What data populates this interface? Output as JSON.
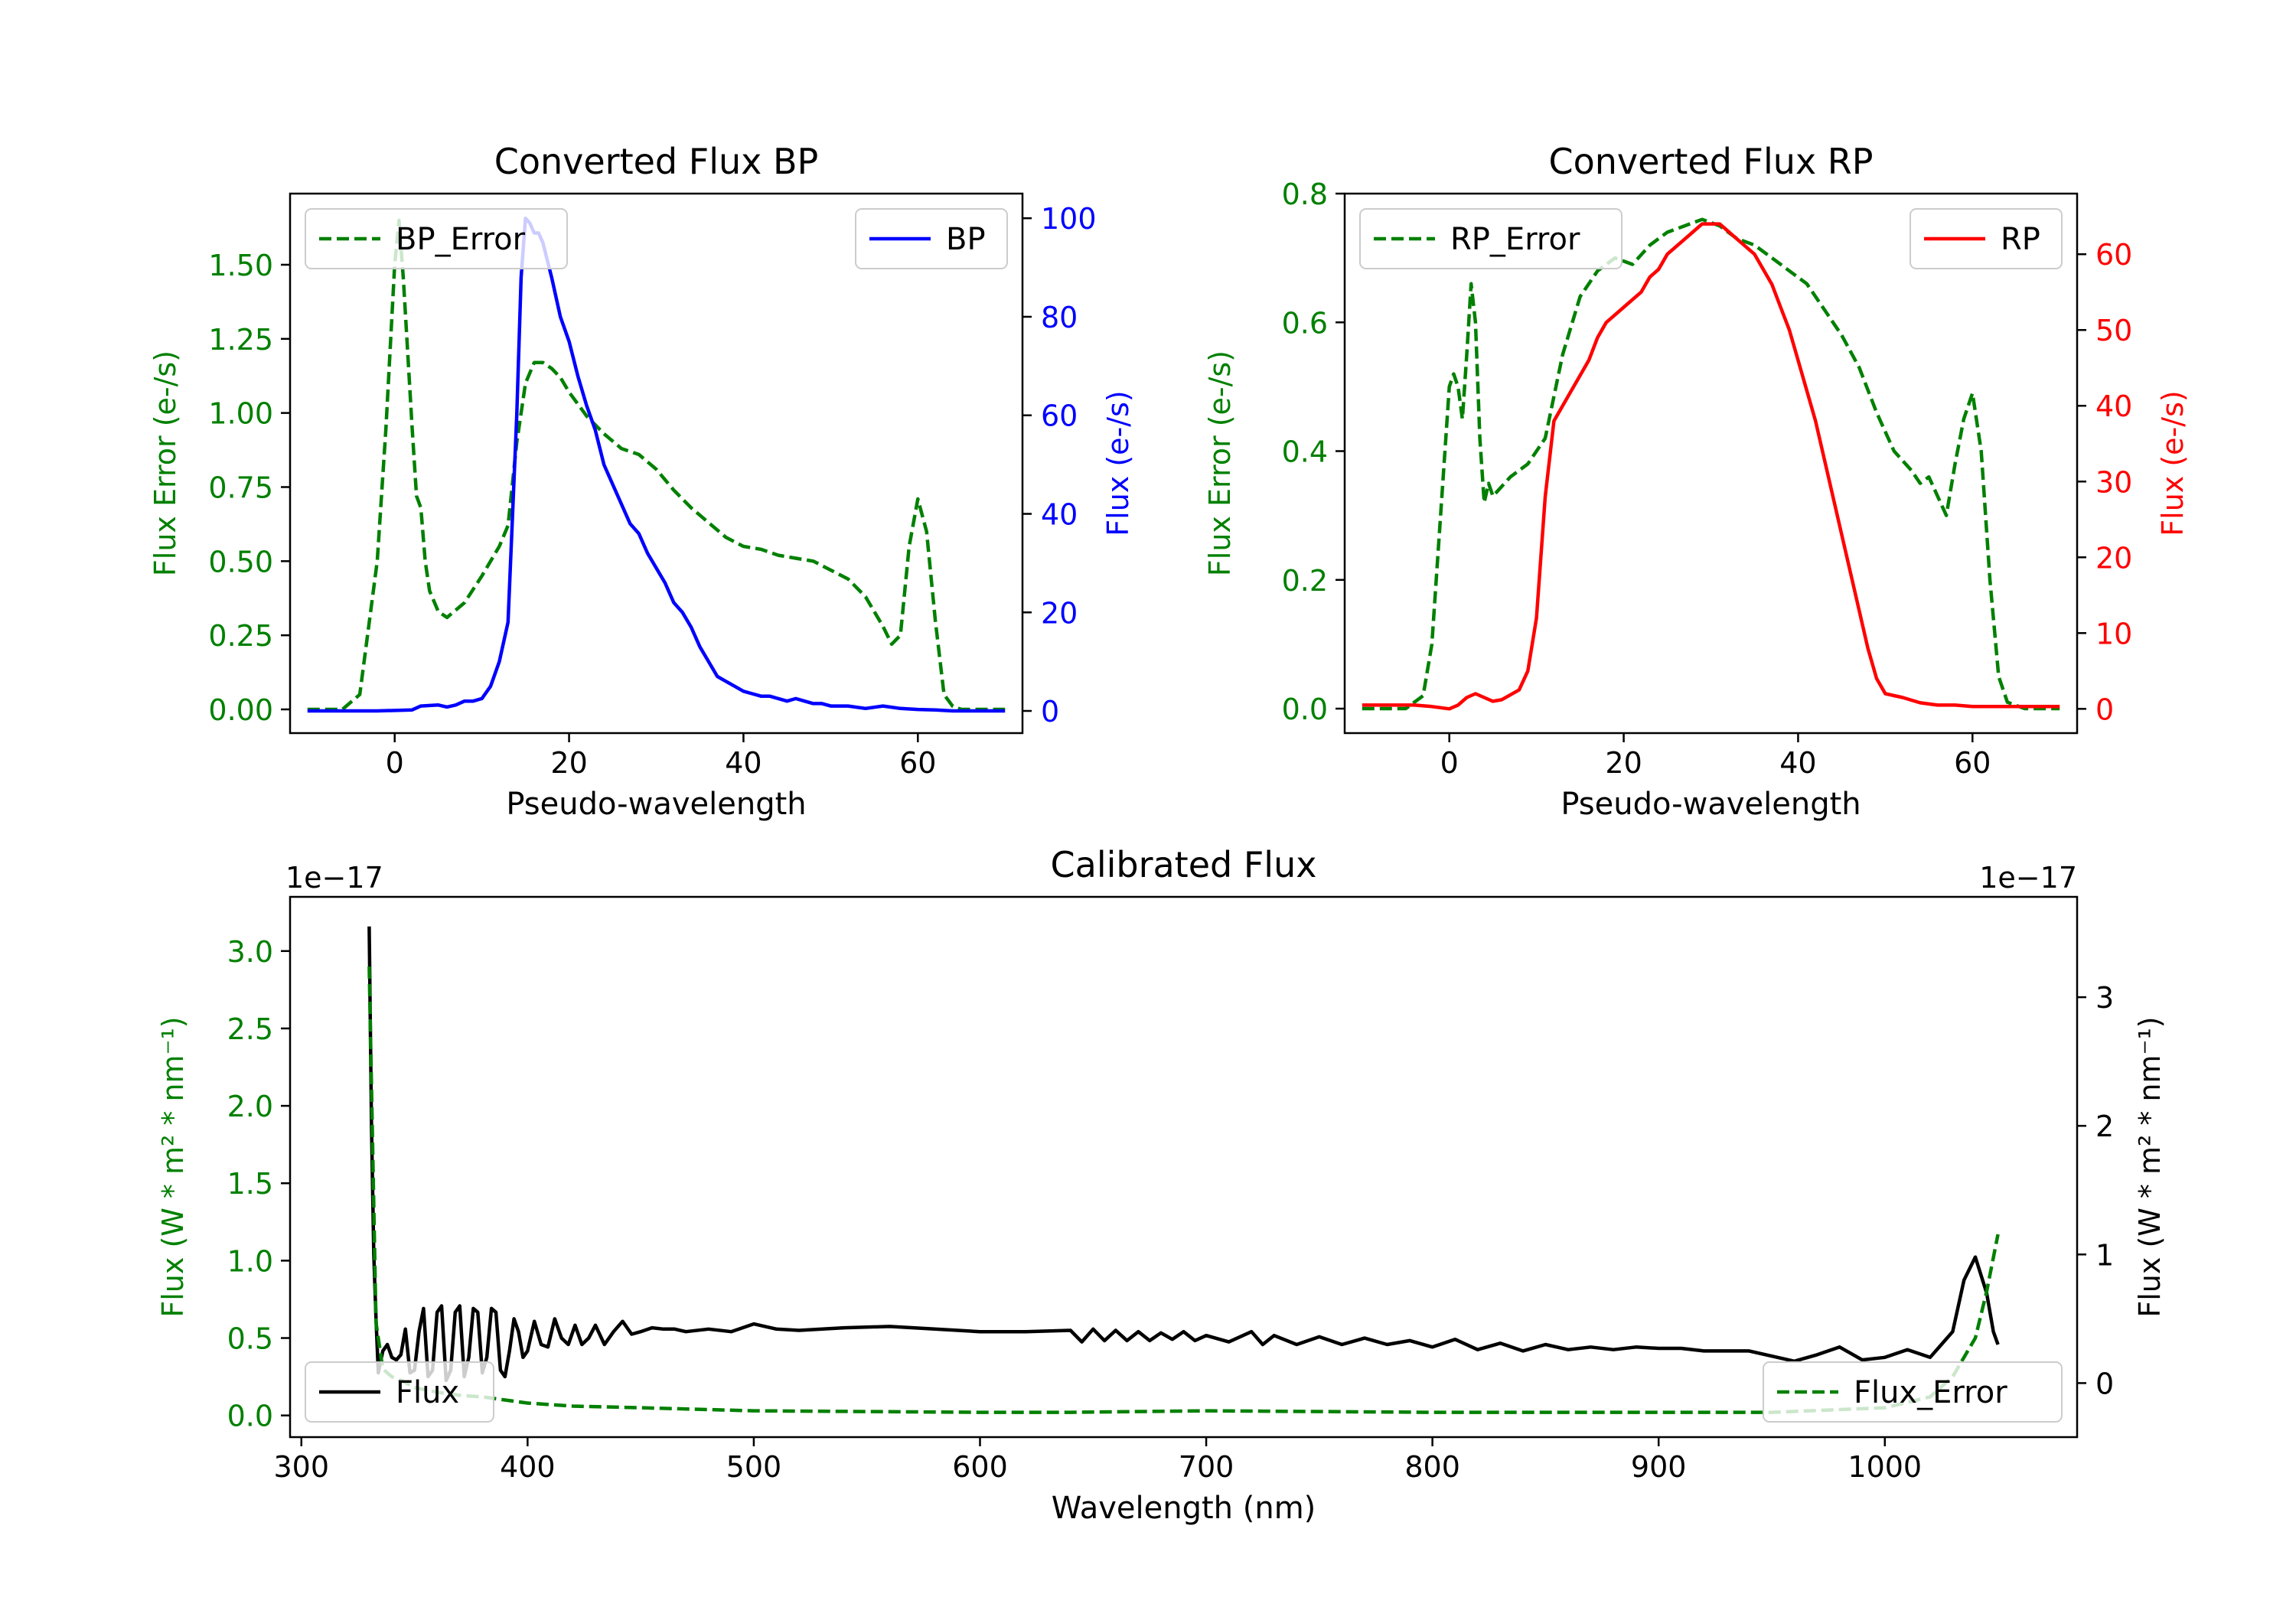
{
  "colors": {
    "green": "#008000",
    "blue": "#0000ff",
    "red": "#ff0000",
    "black": "#000000"
  },
  "chart_data": [
    {
      "id": "bp",
      "type": "line",
      "title": "Converted Flux BP",
      "xlabel": "Pseudo-wavelength",
      "ylabel_left": "Flux Error (e-/s)",
      "ylabel_right": "Flux (e-/s)",
      "xlim": [
        -12,
        72
      ],
      "ylim_left": [
        -0.08,
        1.74
      ],
      "ylim_right": [
        -4.5,
        105
      ],
      "xticks": [
        0,
        20,
        40,
        60
      ],
      "xtick_labels": [
        "0",
        "20",
        "40",
        "60"
      ],
      "yticks_left": [
        0,
        0.25,
        0.5,
        0.75,
        1.0,
        1.25,
        1.5
      ],
      "ytick_labels_left": [
        "0.00",
        "0.25",
        "0.50",
        "0.75",
        "1.00",
        "1.25",
        "1.50"
      ],
      "yticks_right": [
        0,
        20,
        40,
        60,
        80,
        100
      ],
      "ytick_labels_right": [
        "0",
        "20",
        "40",
        "60",
        "80",
        "100"
      ],
      "series": [
        {
          "name": "BP_Error",
          "axis": "left",
          "color": "#008000",
          "dash": "dashed",
          "legend_label": "BP_Error",
          "x": [
            -10,
            -6,
            -4,
            -2,
            -1,
            0,
            0.5,
            1,
            2,
            2.5,
            3,
            3.5,
            4,
            5,
            6,
            8,
            10,
            12,
            13,
            14,
            15,
            16,
            17,
            18,
            19,
            20,
            22,
            24,
            26,
            28,
            30,
            32,
            34,
            36,
            38,
            40,
            42,
            44,
            46,
            48,
            50,
            52,
            54,
            56,
            57,
            58,
            59,
            60,
            61,
            62,
            63,
            64,
            65,
            66,
            68,
            70
          ],
          "y": [
            0,
            0,
            0.05,
            0.5,
            0.95,
            1.5,
            1.65,
            1.45,
            0.95,
            0.72,
            0.68,
            0.5,
            0.4,
            0.33,
            0.31,
            0.36,
            0.45,
            0.55,
            0.62,
            0.9,
            1.1,
            1.17,
            1.17,
            1.15,
            1.12,
            1.07,
            0.99,
            0.93,
            0.88,
            0.86,
            0.81,
            0.74,
            0.68,
            0.63,
            0.58,
            0.55,
            0.54,
            0.52,
            0.51,
            0.5,
            0.47,
            0.44,
            0.38,
            0.28,
            0.22,
            0.25,
            0.55,
            0.71,
            0.6,
            0.3,
            0.05,
            0.01,
            0,
            0,
            0,
            0
          ]
        },
        {
          "name": "BP",
          "axis": "right",
          "color": "#0000ff",
          "dash": "solid",
          "legend_label": "BP",
          "x": [
            -10,
            -2,
            2,
            3,
            5,
            6,
            7,
            8,
            9,
            10,
            11,
            12,
            13,
            14,
            14.5,
            15,
            15.5,
            16,
            16.5,
            17,
            18,
            19,
            20,
            21,
            22,
            23,
            24,
            25,
            26,
            27,
            28,
            29,
            30,
            31,
            32,
            33,
            34,
            35,
            36,
            37,
            38,
            39,
            40,
            41,
            42,
            43,
            44,
            45,
            46,
            47,
            48,
            49,
            50,
            52,
            54,
            56,
            58,
            60,
            62,
            64,
            66,
            68,
            70
          ],
          "y": [
            0,
            0,
            0.2,
            1,
            1.2,
            0.8,
            1.2,
            2,
            2,
            2.5,
            5,
            10,
            18,
            60,
            88,
            100,
            99,
            97,
            97,
            95,
            88,
            80,
            75,
            68,
            62,
            57,
            50,
            46,
            42,
            38,
            36,
            32,
            29,
            26,
            22,
            20,
            17,
            13,
            10,
            7,
            6,
            5,
            4,
            3.5,
            3,
            3,
            2.5,
            2,
            2.5,
            2,
            1.5,
            1.5,
            1,
            1,
            0.5,
            1,
            0.5,
            0.3,
            0.2,
            0,
            0,
            0,
            0
          ]
        }
      ],
      "legends": [
        {
          "position": "upper-left",
          "items": [
            "BP_Error"
          ]
        },
        {
          "position": "upper-right",
          "items": [
            "BP"
          ]
        }
      ]
    },
    {
      "id": "rp",
      "type": "line",
      "title": "Converted Flux RP",
      "xlabel": "Pseudo-wavelength",
      "ylabel_left": "Flux Error (e-/s)",
      "ylabel_right": "Flux (e-/s)",
      "xlim": [
        -12,
        72
      ],
      "ylim_left": [
        -0.038,
        0.8
      ],
      "ylim_right": [
        -3.2,
        68
      ],
      "xticks": [
        0,
        20,
        40,
        60
      ],
      "xtick_labels": [
        "0",
        "20",
        "40",
        "60"
      ],
      "yticks_left": [
        0,
        0.2,
        0.4,
        0.6,
        0.8
      ],
      "ytick_labels_left": [
        "0.0",
        "0.2",
        "0.4",
        "0.6",
        "0.8"
      ],
      "yticks_right": [
        0,
        10,
        20,
        30,
        40,
        50,
        60
      ],
      "ytick_labels_right": [
        "0",
        "10",
        "20",
        "30",
        "40",
        "50",
        "60"
      ],
      "series": [
        {
          "name": "RP_Error",
          "axis": "left",
          "color": "#008000",
          "dash": "dashed",
          "legend_label": "RP_Error",
          "x": [
            -10,
            -5,
            -3,
            -2,
            -1,
            0,
            0.5,
            1,
            1.5,
            2,
            2.5,
            3,
            3.5,
            4,
            4.5,
            5,
            7,
            9,
            11,
            13,
            15,
            17,
            19,
            21,
            23,
            25,
            27,
            29,
            31,
            33,
            35,
            37,
            39,
            41,
            43,
            45,
            47,
            49,
            51,
            53,
            54,
            55,
            56,
            57,
            58,
            59,
            60,
            61,
            62,
            63,
            64,
            66,
            70
          ],
          "y": [
            0,
            0,
            0.02,
            0.1,
            0.3,
            0.5,
            0.52,
            0.5,
            0.45,
            0.55,
            0.66,
            0.6,
            0.42,
            0.32,
            0.35,
            0.33,
            0.36,
            0.38,
            0.42,
            0.55,
            0.64,
            0.68,
            0.7,
            0.69,
            0.72,
            0.74,
            0.75,
            0.76,
            0.75,
            0.73,
            0.72,
            0.7,
            0.68,
            0.66,
            0.62,
            0.58,
            0.53,
            0.46,
            0.4,
            0.37,
            0.35,
            0.36,
            0.33,
            0.3,
            0.38,
            0.45,
            0.49,
            0.4,
            0.2,
            0.05,
            0.01,
            0,
            0
          ]
        },
        {
          "name": "RP",
          "axis": "right",
          "color": "#ff0000",
          "dash": "solid",
          "legend_label": "RP",
          "x": [
            -10,
            -4,
            -2,
            0,
            1,
            2,
            3,
            4,
            5,
            6,
            8,
            9,
            10,
            11,
            12,
            13,
            14,
            15,
            16,
            17,
            18,
            19,
            20,
            21,
            22,
            23,
            24,
            25,
            26,
            27,
            28,
            29,
            30,
            31,
            32,
            33,
            34,
            35,
            36,
            37,
            38,
            39,
            40,
            41,
            42,
            43,
            44,
            45,
            46,
            47,
            48,
            49,
            50,
            52,
            54,
            56,
            58,
            60,
            62,
            64,
            66,
            70
          ],
          "y": [
            0.5,
            0.5,
            0.3,
            0,
            0.5,
            1.5,
            2,
            1.5,
            1,
            1.2,
            2.5,
            5,
            12,
            28,
            38,
            40,
            42,
            44,
            46,
            49,
            51,
            52,
            53,
            54,
            55,
            57,
            58,
            60,
            61,
            62,
            63,
            64,
            64,
            64,
            63,
            62,
            61,
            60,
            58,
            56,
            53,
            50,
            46,
            42,
            38,
            33,
            28,
            23,
            18,
            13,
            8,
            4,
            2,
            1.5,
            0.8,
            0.5,
            0.5,
            0.3,
            0.3,
            0.3,
            0.3,
            0.3
          ]
        }
      ],
      "legends": [
        {
          "position": "upper-left",
          "items": [
            "RP_Error"
          ]
        },
        {
          "position": "upper-right",
          "items": [
            "RP"
          ]
        }
      ]
    },
    {
      "id": "cal",
      "type": "line",
      "title": "Calibrated Flux",
      "xlabel": "Wavelength (nm)",
      "ylabel_left": "Flux (W * m² * nm⁻¹)",
      "ylabel_right": "Flux (W * m² * nm⁻¹)",
      "offset_left": "1e−17",
      "offset_right": "1e−17",
      "xlim": [
        295,
        1085
      ],
      "ylim_left": [
        -0.14,
        3.35
      ],
      "ylim_right": [
        -0.42,
        3.78
      ],
      "xticks": [
        300,
        400,
        500,
        600,
        700,
        800,
        900,
        1000
      ],
      "xtick_labels": [
        "300",
        "400",
        "500",
        "600",
        "700",
        "800",
        "900",
        "1000"
      ],
      "yticks_left": [
        0,
        0.5,
        1.0,
        1.5,
        2.0,
        2.5,
        3.0
      ],
      "ytick_labels_left": [
        "0.0",
        "0.5",
        "1.0",
        "1.5",
        "2.0",
        "2.5",
        "3.0"
      ],
      "yticks_right": [
        0,
        1,
        2,
        3
      ],
      "ytick_labels_right": [
        "0",
        "1",
        "2",
        "3"
      ],
      "series": [
        {
          "name": "Flux",
          "axis": "right",
          "color": "#000000",
          "dash": "solid",
          "legend_label": "Flux",
          "x": [
            330,
            331,
            332,
            333,
            334,
            336,
            338,
            340,
            342,
            344,
            346,
            348,
            350,
            352,
            354,
            356,
            358,
            360,
            362,
            364,
            366,
            368,
            370,
            372,
            374,
            376,
            378,
            380,
            382,
            384,
            386,
            388,
            390,
            392,
            394,
            396,
            398,
            400,
            403,
            406,
            409,
            412,
            415,
            418,
            421,
            424,
            427,
            430,
            434,
            438,
            442,
            446,
            450,
            455,
            460,
            465,
            470,
            480,
            490,
            500,
            510,
            520,
            540,
            560,
            580,
            600,
            620,
            640,
            645,
            650,
            655,
            660,
            665,
            670,
            675,
            680,
            685,
            690,
            695,
            700,
            710,
            720,
            725,
            730,
            740,
            750,
            760,
            770,
            780,
            790,
            800,
            810,
            820,
            830,
            840,
            850,
            860,
            870,
            880,
            890,
            900,
            910,
            920,
            940,
            960,
            970,
            980,
            990,
            1000,
            1010,
            1020,
            1030,
            1035,
            1040,
            1045,
            1048,
            1050
          ],
          "y": [
            3.55,
            2.0,
            1.0,
            0.5,
            0.08,
            0.25,
            0.3,
            0.2,
            0.18,
            0.22,
            0.42,
            0.08,
            0.1,
            0.4,
            0.58,
            0.05,
            0.1,
            0.55,
            0.6,
            0.02,
            0.1,
            0.55,
            0.6,
            0.05,
            0.2,
            0.58,
            0.55,
            0.08,
            0.2,
            0.58,
            0.55,
            0.1,
            0.05,
            0.25,
            0.5,
            0.4,
            0.2,
            0.25,
            0.48,
            0.3,
            0.28,
            0.5,
            0.35,
            0.3,
            0.45,
            0.3,
            0.35,
            0.45,
            0.3,
            0.4,
            0.48,
            0.38,
            0.4,
            0.43,
            0.42,
            0.42,
            0.4,
            0.42,
            0.4,
            0.46,
            0.42,
            0.41,
            0.43,
            0.44,
            0.42,
            0.4,
            0.4,
            0.41,
            0.32,
            0.42,
            0.33,
            0.41,
            0.33,
            0.4,
            0.33,
            0.39,
            0.34,
            0.4,
            0.33,
            0.37,
            0.32,
            0.4,
            0.3,
            0.37,
            0.3,
            0.36,
            0.3,
            0.35,
            0.3,
            0.33,
            0.28,
            0.34,
            0.26,
            0.31,
            0.25,
            0.3,
            0.26,
            0.28,
            0.26,
            0.28,
            0.27,
            0.27,
            0.25,
            0.25,
            0.17,
            0.22,
            0.28,
            0.18,
            0.2,
            0.26,
            0.2,
            0.4,
            0.8,
            0.98,
            0.7,
            0.4,
            0.3
          ]
        },
        {
          "name": "Flux_Error",
          "axis": "left",
          "color": "#008000",
          "dash": "dashed",
          "legend_label": "Flux_Error",
          "x": [
            330,
            333,
            336,
            340,
            345,
            350,
            360,
            370,
            380,
            400,
            420,
            450,
            500,
            600,
            640,
            700,
            800,
            900,
            950,
            1000,
            1020,
            1030,
            1040,
            1045,
            1050
          ],
          "y": [
            2.9,
            0.6,
            0.3,
            0.25,
            0.22,
            0.18,
            0.15,
            0.13,
            0.12,
            0.08,
            0.06,
            0.05,
            0.03,
            0.02,
            0.02,
            0.03,
            0.02,
            0.02,
            0.02,
            0.05,
            0.12,
            0.25,
            0.5,
            0.8,
            1.17
          ]
        }
      ],
      "legends": [
        {
          "position": "lower-left",
          "items": [
            "Flux"
          ]
        },
        {
          "position": "lower-right",
          "items": [
            "Flux_Error"
          ]
        }
      ]
    }
  ]
}
